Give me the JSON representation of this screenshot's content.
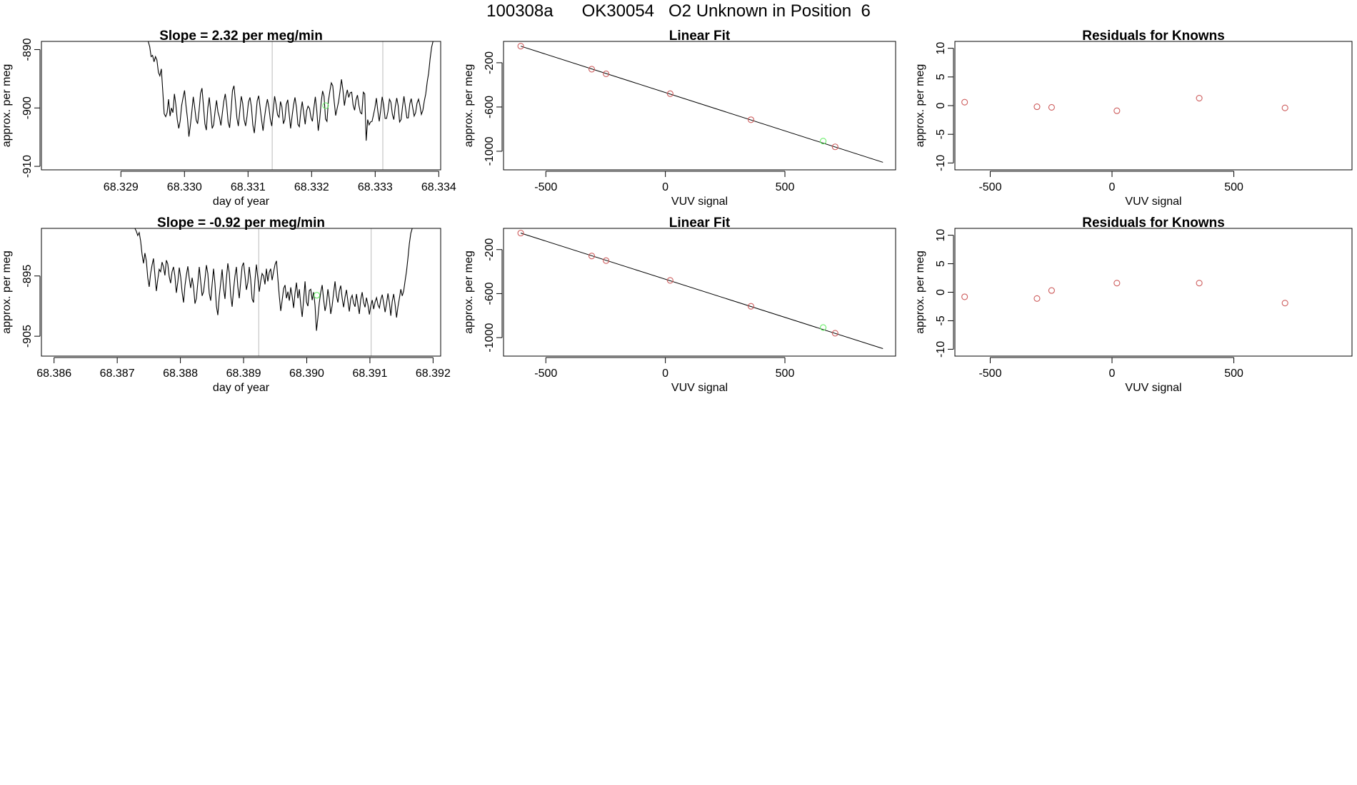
{
  "figure_title": "100308a      OK30054   O2 Unknown in Position  6",
  "colors": {
    "line": "#000000",
    "known": "#cd5c5c",
    "unknown": "#66ee66",
    "vline": "#bbbbbb",
    "frame": "#000000"
  },
  "chart_data": [
    {
      "type": "line",
      "title": "Slope =  2.32  per meg/min",
      "xlabel": "day of year",
      "ylabel": "approx. per meg",
      "xlim": [
        68.32775,
        68.33403
      ],
      "ylim": [
        -910.6,
        -888.6
      ],
      "xticks": [
        "68.329",
        "68.330",
        "68.331",
        "68.332",
        "68.333",
        "68.334"
      ],
      "xtick_values": [
        68.329,
        68.33,
        68.331,
        68.332,
        68.333,
        68.334
      ],
      "yticks": [
        "-910",
        "-900",
        "-890"
      ],
      "ytick_values": [
        -910,
        -900,
        -890
      ],
      "vlines": [
        68.33138,
        68.33312
      ],
      "series_x_range": [
        68.32943,
        68.33391
      ],
      "series_y": [
        -888.6,
        -889.5,
        -891.2,
        -891.0,
        -892.1,
        -891.2,
        -891.8,
        -893.9,
        -894.5,
        -893.3,
        -897.1,
        -901.0,
        -901.5,
        -900.8,
        -898.5,
        -901.4,
        -900.0,
        -900.8,
        -897.6,
        -899.4,
        -902.0,
        -903.5,
        -902.2,
        -899.6,
        -898.2,
        -897.0,
        -899.6,
        -901.8,
        -904.9,
        -903.0,
        -900.6,
        -898.1,
        -899.9,
        -902.1,
        -902.7,
        -900.4,
        -897.5,
        -896.6,
        -899.7,
        -902.7,
        -903.8,
        -900.0,
        -898.2,
        -900.6,
        -903.5,
        -902.9,
        -900.6,
        -898.7,
        -900.7,
        -901.6,
        -903.0,
        -900.9,
        -898.9,
        -897.6,
        -899.5,
        -902.4,
        -903.4,
        -900.5,
        -897.0,
        -896.2,
        -898.8,
        -901.7,
        -903.1,
        -900.6,
        -898.0,
        -899.2,
        -902.0,
        -903.1,
        -901.4,
        -899.0,
        -898.2,
        -899.8,
        -902.9,
        -904.3,
        -901.6,
        -898.8,
        -897.9,
        -899.9,
        -902.0,
        -903.9,
        -901.7,
        -899.9,
        -898.5,
        -899.8,
        -901.9,
        -903.1,
        -900.5,
        -898.0,
        -899.4,
        -901.2,
        -901.6,
        -898.9,
        -899.8,
        -902.7,
        -902.0,
        -899.4,
        -898.6,
        -901.1,
        -903.5,
        -901.4,
        -899.5,
        -898.2,
        -899.9,
        -902.8,
        -903.2,
        -900.5,
        -898.9,
        -900.8,
        -902.8,
        -900.5,
        -899.7,
        -900.1,
        -901.6,
        -902.3,
        -900.0,
        -898.1,
        -900.5,
        -903.9,
        -902.0,
        -899.0,
        -897.1,
        -898.0,
        -901.9,
        -902.3,
        -898.8,
        -897.1,
        -895.7,
        -896.2,
        -899.0,
        -901.3,
        -900.1,
        -898.9,
        -897.1,
        -895.1,
        -897.0,
        -899.6,
        -898.0,
        -896.9,
        -898.2,
        -897.4,
        -897.3,
        -899.5,
        -900.4,
        -898.6,
        -897.8,
        -899.6,
        -900.8,
        -901.0,
        -897.3,
        -897.6,
        -905.6,
        -902.0,
        -902.9,
        -902.4,
        -902.3,
        -901.2,
        -900.0,
        -898.3,
        -900.5,
        -902.3,
        -900.3,
        -898.1,
        -899.4,
        -901.8,
        -901.8,
        -900.6,
        -898.5,
        -899.0,
        -901.1,
        -902.0,
        -899.8,
        -898.3,
        -899.6,
        -902.4,
        -902.0,
        -899.8,
        -898.0,
        -899.9,
        -901.7,
        -901.7,
        -899.3,
        -898.4,
        -899.9,
        -901.4,
        -900.8,
        -899.2,
        -898.5,
        -899.6,
        -901.1,
        -900.4,
        -898.8,
        -897.6,
        -895.5,
        -894.0,
        -891.6,
        -889.6,
        -888.6
      ],
      "marker": {
        "x": 68.33222,
        "y": -899.6
      }
    },
    {
      "type": "scatter",
      "title": "Linear Fit",
      "xlabel": "VUV signal",
      "ylabel": "approx. per meg",
      "xlim": [
        -677,
        963
      ],
      "ylim": [
        -1168,
        -7
      ],
      "xticks": [
        "-500",
        "0",
        "500"
      ],
      "xtick_values": [
        -500,
        0,
        500
      ],
      "yticks": [
        "-1000",
        "-600",
        "-200"
      ],
      "ytick_values": [
        -1000,
        -600,
        -200
      ],
      "fit_line": {
        "x": [
          -605,
          910
        ],
        "y": [
          -50,
          -1100
        ]
      },
      "known_points": {
        "x": [
          -605,
          -308,
          -248,
          20,
          358,
          710
        ],
        "y": [
          -50,
          -258,
          -300,
          -480,
          -715,
          -960
        ]
      },
      "unknown_points": {
        "x": [
          660
        ],
        "y": [
          -908
        ]
      }
    },
    {
      "type": "scatter",
      "title": "Residuals for Knowns",
      "xlabel": "VUV signal",
      "ylabel": "approx. per meg",
      "xlim": [
        -645,
        985
      ],
      "ylim": [
        -11.2,
        11.2
      ],
      "xticks": [
        "-500",
        "0",
        "500"
      ],
      "xtick_values": [
        -500,
        0,
        500
      ],
      "yticks": [
        "-10",
        "-5",
        "0",
        "5",
        "10"
      ],
      "ytick_values": [
        -10,
        -5,
        0,
        5,
        10
      ],
      "known_points": {
        "x": [
          -605,
          -308,
          -248,
          20,
          358,
          710
        ],
        "y": [
          0.6,
          -0.2,
          -0.3,
          -0.9,
          1.3,
          -0.4
        ]
      }
    },
    {
      "type": "line",
      "title": "Slope =  -0.92  per meg/min",
      "xlabel": "day of year",
      "ylabel": "approx. per meg",
      "xlim": [
        68.3858,
        68.39212
      ],
      "ylim": [
        -908.3,
        -887.1
      ],
      "xticks": [
        "68.386",
        "68.387",
        "68.388",
        "68.389",
        "68.390",
        "68.391",
        "68.392"
      ],
      "xtick_values": [
        68.386,
        68.387,
        68.388,
        68.389,
        68.39,
        68.391,
        68.392
      ],
      "yticks": [
        "-905",
        "-895"
      ],
      "ytick_values": [
        -905,
        -895
      ],
      "vlines": [
        68.38924,
        68.39102
      ],
      "series_x_range": [
        68.38728,
        68.39167
      ],
      "series_y": [
        -887.1,
        -887.6,
        -888.3,
        -887.8,
        -889.2,
        -891.4,
        -892.9,
        -891.2,
        -892.5,
        -895.3,
        -896.8,
        -894.6,
        -893.2,
        -892.1,
        -894.8,
        -897.5,
        -895.6,
        -893.9,
        -894.3,
        -892.7,
        -893.5,
        -894.9,
        -892.4,
        -893.0,
        -895.1,
        -896.2,
        -894.3,
        -893.5,
        -895.0,
        -897.8,
        -896.0,
        -893.6,
        -895.2,
        -897.7,
        -899.4,
        -896.6,
        -894.8,
        -893.4,
        -895.4,
        -897.0,
        -895.3,
        -896.8,
        -899.6,
        -898.7,
        -896.1,
        -893.5,
        -895.9,
        -898.3,
        -897.6,
        -895.5,
        -893.2,
        -894.6,
        -897.9,
        -899.1,
        -896.4,
        -893.8,
        -896.3,
        -900.0,
        -901.5,
        -898.4,
        -896.2,
        -893.9,
        -897.0,
        -898.8,
        -895.4,
        -892.9,
        -894.5,
        -898.2,
        -900.1,
        -897.3,
        -895.0,
        -893.5,
        -896.8,
        -898.7,
        -896.0,
        -893.4,
        -892.8,
        -894.9,
        -897.3,
        -896.1,
        -893.5,
        -895.6,
        -898.8,
        -899.4,
        -895.7,
        -893.1,
        -895.3,
        -897.6,
        -895.9,
        -894.6,
        -895.0,
        -896.4,
        -893.8,
        -895.9,
        -894.4,
        -893.8,
        -895.7,
        -894.3,
        -893.1,
        -892.5,
        -895.5,
        -898.4,
        -900.8,
        -899.0,
        -897.1,
        -896.5,
        -898.7,
        -897.6,
        -899.1,
        -896.9,
        -898.4,
        -900.3,
        -897.8,
        -896.1,
        -898.7,
        -897.2,
        -899.8,
        -901.8,
        -899.0,
        -895.9,
        -899.3,
        -900.0,
        -897.4,
        -897.2,
        -899.0,
        -897.7,
        -899.9,
        -904.1,
        -901.9,
        -899.4,
        -897.7,
        -896.5,
        -898.9,
        -900.8,
        -899.6,
        -897.2,
        -898.8,
        -901.3,
        -899.9,
        -897.8,
        -895.9,
        -898.3,
        -899.4,
        -897.5,
        -896.6,
        -898.7,
        -900.2,
        -898.5,
        -897.3,
        -899.2,
        -900.9,
        -898.8,
        -898.2,
        -899.5,
        -900.1,
        -898.0,
        -899.7,
        -901.3,
        -898.9,
        -897.7,
        -899.4,
        -900.2,
        -898.6,
        -899.8,
        -901.4,
        -899.9,
        -899.0,
        -900.5,
        -899.3,
        -898.6,
        -899.8,
        -900.3,
        -898.9,
        -898.1,
        -899.5,
        -901.0,
        -899.6,
        -897.9,
        -899.4,
        -901.6,
        -899.2,
        -898.0,
        -899.7,
        -901.9,
        -900.1,
        -898.7,
        -897.2,
        -898.3,
        -897.5,
        -895.8,
        -894.2,
        -892.0,
        -889.6,
        -887.9,
        -887.1
      ],
      "marker": {
        "x": 68.39016,
        "y": -898.2
      }
    },
    {
      "type": "scatter",
      "title": "Linear Fit",
      "xlabel": "VUV signal",
      "ylabel": "approx. per meg",
      "xlim": [
        -677,
        963
      ],
      "ylim": [
        -1168,
        -7
      ],
      "xticks": [
        "-500",
        "0",
        "500"
      ],
      "xtick_values": [
        -500,
        0,
        500
      ],
      "yticks": [
        "-1000",
        "-600",
        "-200"
      ],
      "ytick_values": [
        -1000,
        -600,
        -200
      ],
      "fit_line": {
        "x": [
          -605,
          910
        ],
        "y": [
          -50,
          -1100
        ]
      },
      "known_points": {
        "x": [
          -605,
          -308,
          -248,
          20,
          358,
          710
        ],
        "y": [
          -50,
          -258,
          -300,
          -480,
          -715,
          -960
        ]
      },
      "unknown_points": {
        "x": [
          660
        ],
        "y": [
          -908
        ]
      }
    },
    {
      "type": "scatter",
      "title": "Residuals for Knowns",
      "xlabel": "VUV signal",
      "ylabel": "approx. per meg",
      "xlim": [
        -645,
        985
      ],
      "ylim": [
        -11.2,
        11.2
      ],
      "xticks": [
        "-500",
        "0",
        "500"
      ],
      "xtick_values": [
        -500,
        0,
        500
      ],
      "yticks": [
        "-10",
        "-5",
        "0",
        "5",
        "10"
      ],
      "ytick_values": [
        -10,
        -5,
        0,
        5,
        10
      ],
      "known_points": {
        "x": [
          -605,
          -308,
          -248,
          20,
          358,
          710
        ],
        "y": [
          -0.8,
          -1.1,
          0.3,
          1.6,
          1.6,
          -1.9
        ]
      }
    }
  ]
}
